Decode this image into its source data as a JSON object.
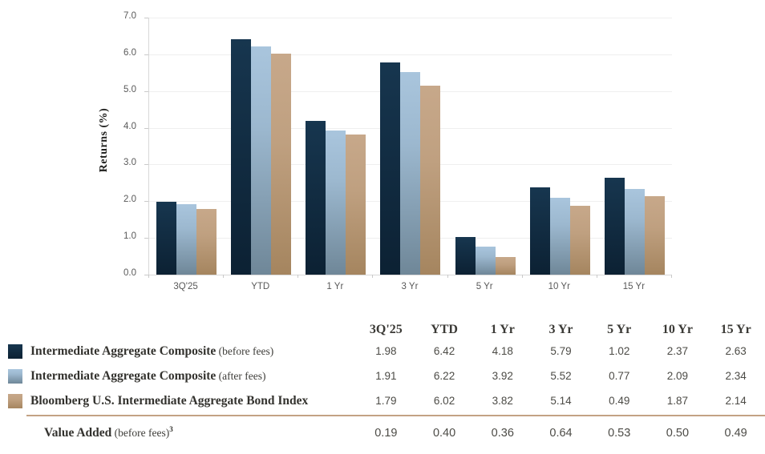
{
  "colors": {
    "navy_top": "#17364f",
    "navy_bottom": "#0c2133",
    "blue_top": "#a9c5dd",
    "blue_mid": "#9cb8cf",
    "blue_bottom": "#6f8798",
    "tan_top": "#c7a88a",
    "tan_mid": "#bfa080",
    "tan_bottom": "#a5855f",
    "separator": "#c3a284",
    "grid": "#efefef",
    "axis": "#d8d8d8",
    "tick_text": "#595959",
    "header_text": "#3b3a36",
    "value_text": "#4c4b46"
  },
  "chart_data": {
    "type": "bar",
    "title": "",
    "xlabel": "",
    "ylabel": "Returns (%)",
    "ylim": [
      0,
      7
    ],
    "ytick_step": 1.0,
    "yticks": [
      "7.0",
      "6.0",
      "5.0",
      "4.0",
      "3.0",
      "2.0",
      "1.0",
      "0.0"
    ],
    "grid": true,
    "legend_position": "bottom-table",
    "categories": [
      "3Q'25",
      "YTD",
      "1 Yr",
      "3 Yr",
      "5 Yr",
      "10 Yr",
      "15 Yr"
    ],
    "series": [
      {
        "name": "Intermediate Aggregate Composite (before fees)",
        "color_key": "navy",
        "values": [
          1.98,
          6.42,
          4.18,
          5.79,
          1.02,
          2.37,
          2.63
        ]
      },
      {
        "name": "Intermediate Aggregate Composite (after fees)",
        "color_key": "blue",
        "values": [
          1.91,
          6.22,
          3.92,
          5.52,
          0.77,
          2.09,
          2.34
        ]
      },
      {
        "name": "Bloomberg U.S. Intermediate Aggregate Bond Index",
        "color_key": "tan",
        "values": [
          1.79,
          6.02,
          3.82,
          5.14,
          0.49,
          1.87,
          2.14
        ]
      }
    ]
  },
  "table": {
    "headers": [
      "3Q'25",
      "YTD",
      "1 Yr",
      "3 Yr",
      "5 Yr",
      "10 Yr",
      "15 Yr"
    ],
    "rows": [
      {
        "label": "Intermediate Aggregate Composite",
        "suffix": " (before fees)",
        "superscript": "",
        "swatch": "navy",
        "values": [
          "1.98",
          "6.42",
          "4.18",
          "5.79",
          "1.02",
          "2.37",
          "2.63"
        ]
      },
      {
        "label": "Intermediate Aggregate Composite",
        "suffix": " (after fees)",
        "superscript": "",
        "swatch": "blue",
        "values": [
          "1.91",
          "6.22",
          "3.92",
          "5.52",
          "0.77",
          "2.09",
          "2.34"
        ]
      },
      {
        "label": "Bloomberg U.S. Intermediate Aggregate Bond Index",
        "suffix": "",
        "superscript": "",
        "swatch": "tan",
        "values": [
          "1.79",
          "6.02",
          "3.82",
          "5.14",
          "0.49",
          "1.87",
          "2.14"
        ]
      }
    ],
    "footer": {
      "label": "Value Added",
      "suffix": " (before fees)",
      "superscript": "3",
      "values": [
        "0.19",
        "0.40",
        "0.36",
        "0.64",
        "0.53",
        "0.50",
        "0.49"
      ]
    }
  }
}
